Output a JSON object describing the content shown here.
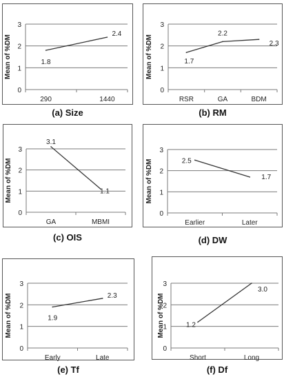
{
  "chart_data": [
    {
      "id": "a",
      "type": "line",
      "caption": "(a) Size",
      "ylabel": "Mean of %DM",
      "categories": [
        "290",
        "1440"
      ],
      "values": [
        1.8,
        2.4
      ],
      "data_labels": [
        "1.8",
        "2.4"
      ],
      "ylim": [
        0,
        3
      ],
      "yticks": [
        "0",
        "1",
        "2",
        "3"
      ],
      "grid": true
    },
    {
      "id": "b",
      "type": "line",
      "caption": "(b) RM",
      "ylabel": "Mean of %DM",
      "categories": [
        "RSR",
        "GA",
        "BDM"
      ],
      "values": [
        1.7,
        2.2,
        2.3
      ],
      "data_labels": [
        "1.7",
        "2.2",
        "2.3"
      ],
      "ylim": [
        0,
        3
      ],
      "yticks": [
        "0",
        "1",
        "2",
        "3"
      ],
      "grid": true
    },
    {
      "id": "c",
      "type": "line",
      "caption": "(c) OIS",
      "ylabel": "Mean of %DM",
      "categories": [
        "GA",
        "MBMI"
      ],
      "values": [
        3.1,
        1.1
      ],
      "data_labels": [
        "3.1",
        "1.1"
      ],
      "ylim": [
        0,
        3
      ],
      "yticks": [
        "0",
        "1",
        "2",
        "3"
      ],
      "grid": true
    },
    {
      "id": "d",
      "type": "line",
      "caption": "(d) DW",
      "ylabel": "Mean of %DM",
      "categories": [
        "Earlier",
        "Later"
      ],
      "values": [
        2.5,
        1.7
      ],
      "data_labels": [
        "2.5",
        "1.7"
      ],
      "ylim": [
        0,
        3
      ],
      "yticks": [
        "0",
        "1",
        "2",
        "3"
      ],
      "grid": true
    },
    {
      "id": "e",
      "type": "line",
      "caption": "(e) Tf",
      "ylabel": "Mean of %DM",
      "categories": [
        "Early",
        "Late"
      ],
      "values": [
        1.9,
        2.3
      ],
      "data_labels": [
        "1.9",
        "2.3"
      ],
      "ylim": [
        0,
        3
      ],
      "yticks": [
        "0",
        "1",
        "2",
        "3"
      ],
      "grid": true
    },
    {
      "id": "f",
      "type": "line",
      "caption": "(f) Df",
      "ylabel": "Mean of %DM",
      "categories": [
        "Short",
        "Long"
      ],
      "values": [
        1.2,
        3.0
      ],
      "data_labels": [
        "1.2",
        "3.0"
      ],
      "ylim": [
        0,
        3
      ],
      "yticks": [
        "0",
        "1",
        "2",
        "3"
      ],
      "grid": true
    }
  ]
}
